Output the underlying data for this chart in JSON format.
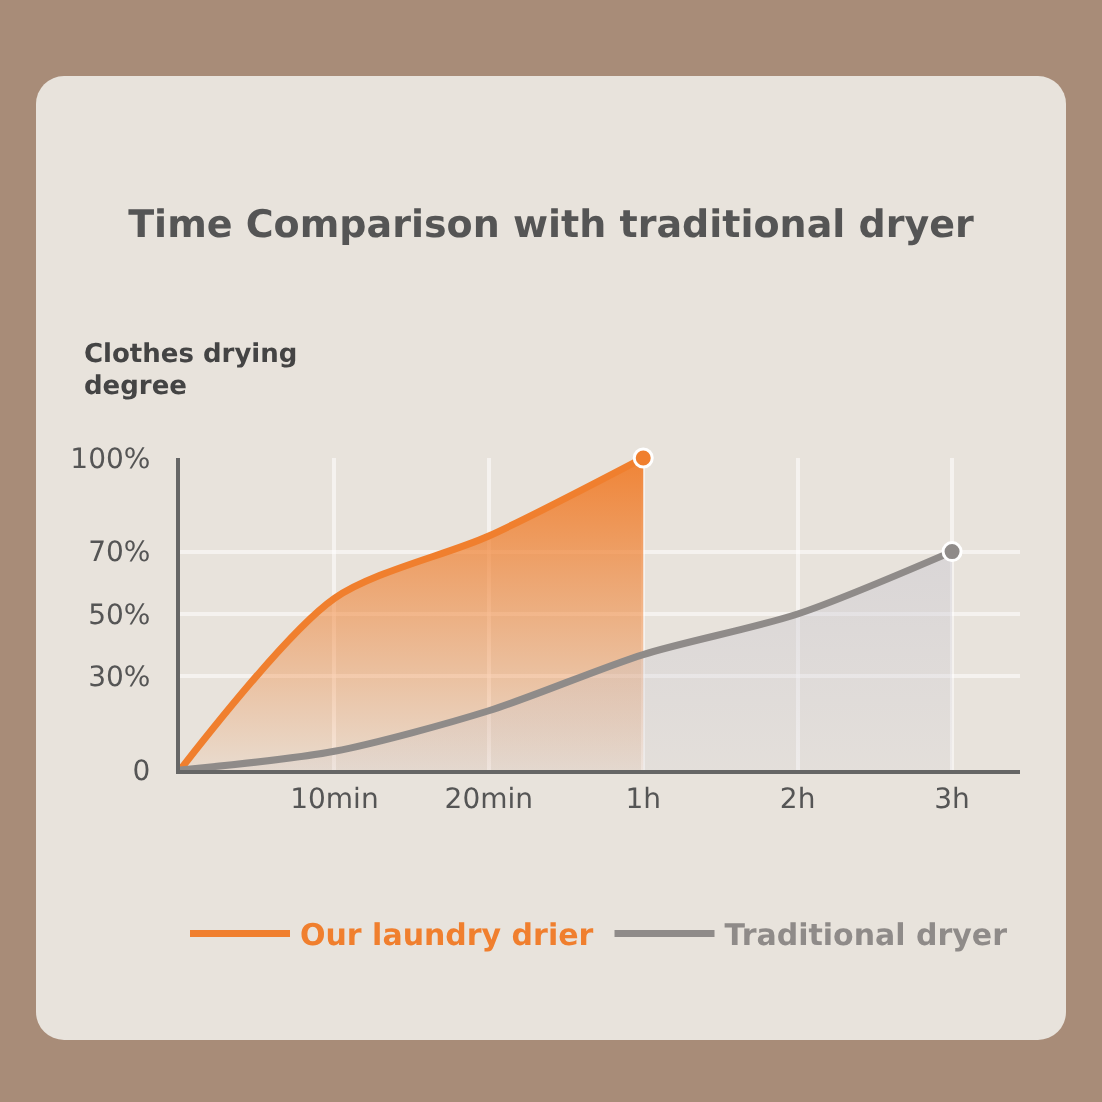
{
  "chart_data": {
    "type": "area",
    "title": "Time Comparison with traditional dryer",
    "ylabel": "Clothes drying degree",
    "categories": [
      null,
      "10min",
      "20min",
      "1h",
      "2h",
      "3h"
    ],
    "series": [
      {
        "name": "Our laundry drier",
        "color": "#f07f2e",
        "values": [
          0,
          55,
          75,
          100,
          null,
          null
        ]
      },
      {
        "name": "Traditional dryer",
        "color": "#8f8b89",
        "values": [
          0,
          6,
          19,
          37,
          50,
          70
        ]
      }
    ],
    "ylim": [
      0,
      100
    ],
    "yticks": [
      0,
      {
        "value": 30,
        "label": "30%"
      },
      {
        "value": 50,
        "label": "50%"
      },
      {
        "value": 70,
        "label": "70%"
      },
      {
        "value": 100,
        "label": "100%"
      }
    ],
    "grid": true,
    "legend": "bottom",
    "line_style": "solid"
  }
}
